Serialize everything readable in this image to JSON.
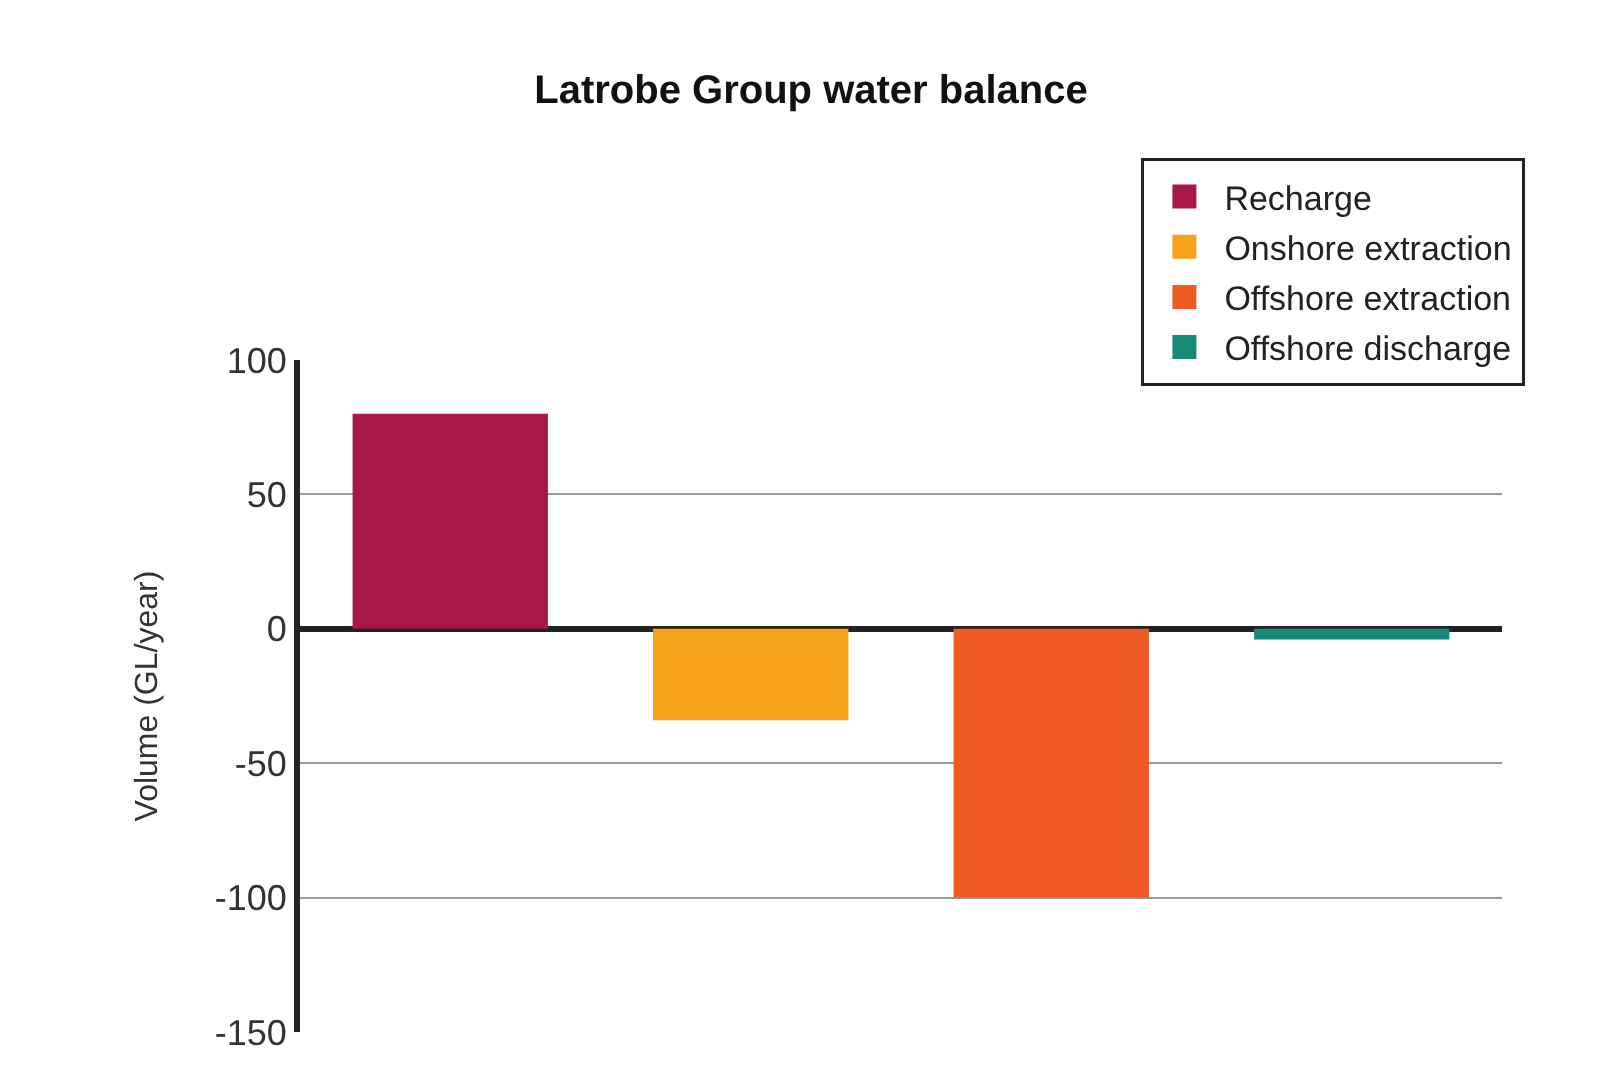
{
  "chart_data": {
    "type": "bar",
    "title": "Latrobe Group water balance",
    "ylabel": "Volume (GL/year)",
    "categories": [
      null,
      null,
      null,
      null
    ],
    "series": [
      {
        "name": "Recharge",
        "color": "#a8174a",
        "values": [
          80,
          null,
          null,
          null
        ]
      },
      {
        "name": "Onshore extraction",
        "color": "#f5a31a",
        "values": [
          null,
          -34,
          null,
          null
        ]
      },
      {
        "name": "Offshore extraction",
        "color": "#f15a22",
        "values": [
          null,
          null,
          -100,
          null
        ]
      },
      {
        "name": "Offshore discharge",
        "color": "#1a8a78",
        "values": [
          null,
          null,
          null,
          -4
        ]
      }
    ],
    "stacked": true,
    "ylim": [
      -150,
      100
    ],
    "yticks": [
      -150,
      -100,
      -50,
      0,
      50,
      100
    ],
    "grid": "y",
    "legend": "top right"
  }
}
